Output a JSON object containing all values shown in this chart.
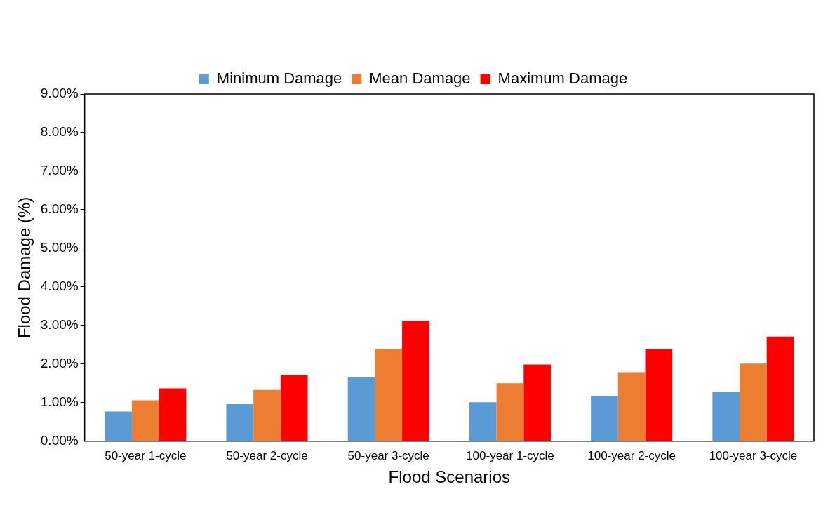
{
  "chart_data": {
    "type": "bar",
    "xlabel": "Flood Scenarios",
    "ylabel": "Flood Damage (%)",
    "categories": [
      "50-year 1-cycle",
      "50-year 2-cycle",
      "50-year 3-cycle",
      "100-year 1-cycle",
      "100-year 2-cycle",
      "100-year 3-cycle"
    ],
    "series": [
      {
        "name": "Minimum Damage",
        "color": "#5b9bd5",
        "values": [
          0.77,
          0.96,
          1.65,
          1.01,
          1.18,
          1.28
        ]
      },
      {
        "name": "Mean Damage",
        "color": "#ed7d31",
        "values": [
          1.06,
          1.33,
          2.39,
          1.5,
          1.79,
          2.01
        ]
      },
      {
        "name": "Maximum Damage",
        "color": "#ff0000",
        "values": [
          1.37,
          1.72,
          3.12,
          1.99,
          2.39,
          2.71
        ]
      }
    ],
    "ylim": [
      0,
      9
    ],
    "yticks": [
      {
        "value": 0,
        "label": "0.00%"
      },
      {
        "value": 1,
        "label": "1.00%"
      },
      {
        "value": 2,
        "label": "2.00%"
      },
      {
        "value": 3,
        "label": "3.00%"
      },
      {
        "value": 4,
        "label": "4.00%"
      },
      {
        "value": 5,
        "label": "5.00%"
      },
      {
        "value": 6,
        "label": "6.00%"
      },
      {
        "value": 7,
        "label": "7.00%"
      },
      {
        "value": 8,
        "label": "8.00%"
      },
      {
        "value": 9,
        "label": "9.00%"
      }
    ],
    "grid": false,
    "legend": "top"
  }
}
